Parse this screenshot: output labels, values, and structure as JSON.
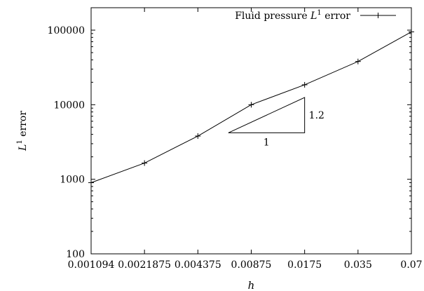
{
  "chart_data": {
    "type": "line",
    "xscale": "log2",
    "yscale": "log10",
    "xlabel": "h",
    "ylabel": {
      "base": "L",
      "sup": "1",
      "rest": " error"
    },
    "x_ticks": [
      {
        "value": 0.00109375,
        "label": "0.001094"
      },
      {
        "value": 0.0021875,
        "label": "0.0021875"
      },
      {
        "value": 0.004375,
        "label": "0.004375"
      },
      {
        "value": 0.00875,
        "label": "0.00875"
      },
      {
        "value": 0.0175,
        "label": "0.0175"
      },
      {
        "value": 0.035,
        "label": "0.035"
      },
      {
        "value": 0.07,
        "label": "0.07"
      }
    ],
    "y_ticks": [
      {
        "value": 100,
        "label": "100"
      },
      {
        "value": 1000,
        "label": "1000"
      },
      {
        "value": 10000,
        "label": "10000"
      },
      {
        "value": 100000,
        "label": "100000"
      }
    ],
    "xlim": [
      0.00109375,
      0.07
    ],
    "ylim": [
      100,
      200000
    ],
    "series": [
      {
        "legend": {
          "pre": "Fluid pressure ",
          "base": "L",
          "sup": "1",
          "post": " error"
        },
        "marker": "plus",
        "color": "#000000",
        "x": [
          0.00109375,
          0.0021875,
          0.004375,
          0.00875,
          0.0175,
          0.035,
          0.07
        ],
        "y": [
          900,
          1650,
          3800,
          10000,
          18500,
          38000,
          95000
        ]
      }
    ],
    "legend_position": "top-right",
    "grid": false,
    "slope_triangle": {
      "x": [
        0.0065,
        0.0175
      ],
      "y": [
        4200,
        12500
      ],
      "run_label": "1",
      "rise_label": "1.2"
    }
  }
}
